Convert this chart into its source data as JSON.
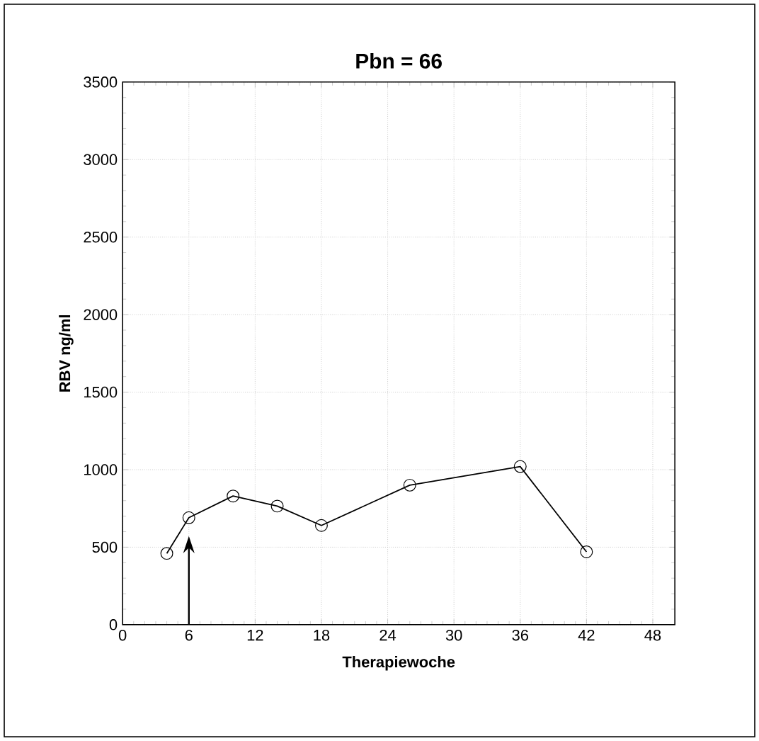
{
  "chart_data": {
    "type": "line",
    "title": "Pbn = 66",
    "xlabel": "Therapiewoche",
    "ylabel": "RBV ng/ml",
    "x": [
      4,
      6,
      10,
      14,
      18,
      26,
      36,
      42
    ],
    "series": [
      {
        "color": "#000000",
        "values": [
          460,
          690,
          830,
          765,
          640,
          900,
          1020,
          470
        ]
      }
    ],
    "xlim": [
      0,
      50
    ],
    "xticks": [
      0,
      6,
      12,
      18,
      24,
      30,
      36,
      42,
      48
    ],
    "ylim": [
      0,
      3500
    ],
    "yticks": [
      0,
      500,
      1000,
      1500,
      2000,
      2500,
      3000,
      3500
    ],
    "grid": true,
    "marker": "circle",
    "line_style": "solid"
  }
}
